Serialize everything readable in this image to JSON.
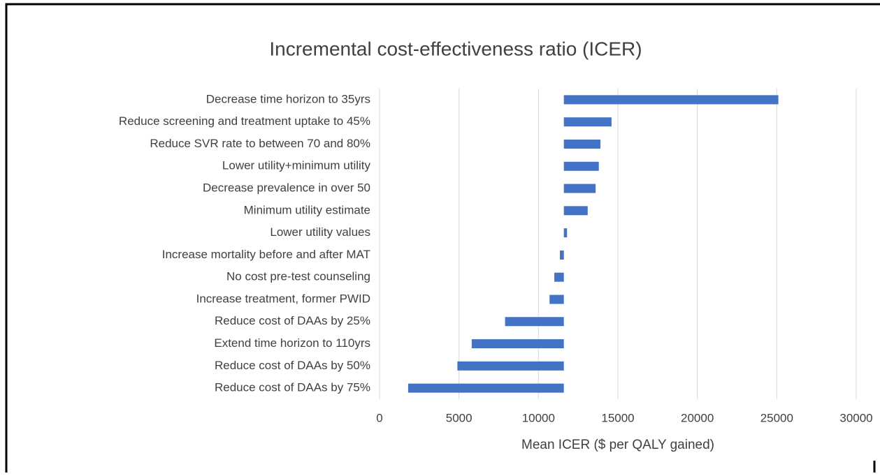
{
  "chart_data": {
    "type": "tornado",
    "title": "Incremental cost-effectiveness ratio (ICER)",
    "x_label": "Mean ICER ($ per QALY gained)",
    "categories": [
      "Decrease time horizon to 35yrs",
      "Reduce screening and treatment uptake to 45%",
      "Reduce SVR rate to between 70 and 80%",
      "Lower utility+minimum utility",
      "Decrease prevalence in over 50",
      "Minimum utility estimate",
      "Lower utility values",
      "Increase mortality before and after MAT",
      "No cost pre-test counseling",
      "Increase treatment, former PWID",
      "Reduce cost of DAAs by 25%",
      "Extend time horizon to 110yrs",
      "Reduce cost of DAAs by 50%",
      "Reduce cost of DAAs by 75%"
    ],
    "base": 11600,
    "values": [
      25100,
      14600,
      13900,
      13800,
      13600,
      13100,
      11800,
      11350,
      11000,
      10700,
      7900,
      5800,
      4900,
      1800
    ],
    "color": "#4472c4",
    "xlim": [
      0,
      30000
    ],
    "xticks": [
      0,
      5000,
      10000,
      15000,
      20000,
      25000,
      30000
    ],
    "grid": true
  }
}
